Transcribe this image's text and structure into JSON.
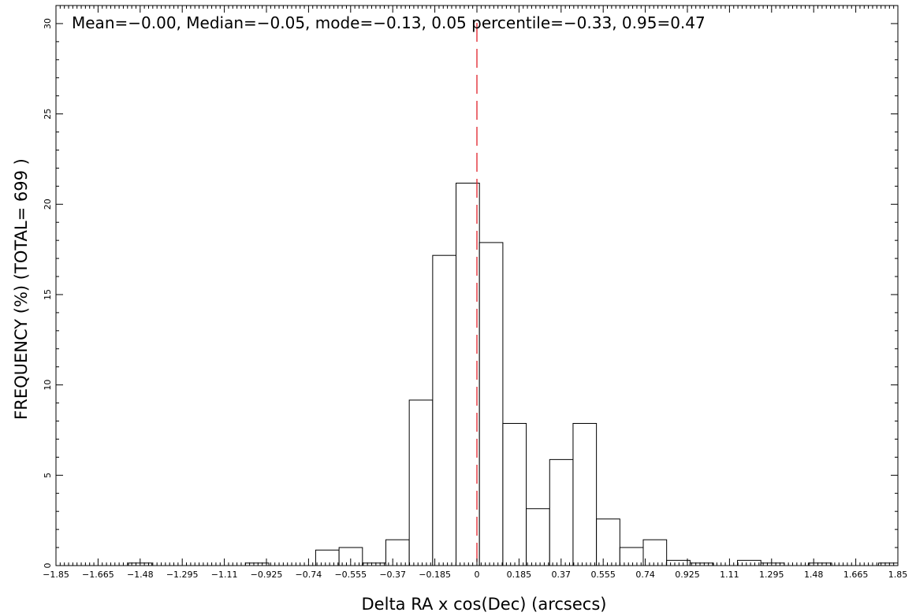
{
  "chart_data": {
    "type": "bar",
    "annotation": "Mean=−0.00, Median=−0.05, mode=−0.13, 0.05 percentile=−0.33, 0.95=0.47",
    "xlabel": "Delta RA x cos(Dec) (arcsecs)",
    "ylabel": "FREQUENCY (%) (TOTAL= 699 )",
    "xlim": [
      -1.85,
      1.85
    ],
    "ylim": [
      0,
      31
    ],
    "grid": false,
    "bin_width": 0.1028,
    "x_tick_values": [
      -1.85,
      -1.665,
      -1.48,
      -1.295,
      -1.11,
      -0.925,
      -0.74,
      -0.555,
      -0.37,
      -0.185,
      0,
      0.185,
      0.37,
      0.555,
      0.74,
      0.925,
      1.11,
      1.295,
      1.48,
      1.665,
      1.85
    ],
    "x_tick_labels": [
      "−1.85",
      "−1.665",
      "−1.48",
      "−1.295",
      "−1.11",
      "−0.925",
      "−0.74",
      "−0.555",
      "−0.37",
      "−0.185",
      "0",
      "0.185",
      "0.37",
      "0.555",
      "0.74",
      "0.925",
      "1.11",
      "1.295",
      "1.48",
      "1.665",
      "1.85"
    ],
    "y_tick_values": [
      0,
      5,
      10,
      15,
      20,
      25,
      30
    ],
    "y_tick_labels": [
      "0",
      "5",
      "10",
      "15",
      "20",
      "25",
      "30"
    ],
    "bins": [
      {
        "x0": -1.5314,
        "x1": -1.4286,
        "value": 0.14
      },
      {
        "x0": -1.0172,
        "x1": -0.9144,
        "value": 0.14
      },
      {
        "x0": -0.7087,
        "x1": -0.6059,
        "value": 0.86
      },
      {
        "x0": -0.6059,
        "x1": -0.503,
        "value": 1.0
      },
      {
        "x0": -0.503,
        "x1": -0.4002,
        "value": 0.14
      },
      {
        "x0": -0.4002,
        "x1": -0.2974,
        "value": 1.43
      },
      {
        "x0": -0.2974,
        "x1": -0.1945,
        "value": 9.16
      },
      {
        "x0": -0.1945,
        "x1": -0.0917,
        "value": 17.17
      },
      {
        "x0": -0.0917,
        "x1": 0.0111,
        "value": 21.17
      },
      {
        "x0": 0.0111,
        "x1": 0.114,
        "value": 17.88
      },
      {
        "x0": 0.114,
        "x1": 0.2168,
        "value": 7.87
      },
      {
        "x0": 0.2168,
        "x1": 0.3197,
        "value": 3.15
      },
      {
        "x0": 0.3197,
        "x1": 0.4225,
        "value": 5.87
      },
      {
        "x0": 0.4225,
        "x1": 0.5253,
        "value": 7.87
      },
      {
        "x0": 0.5253,
        "x1": 0.6282,
        "value": 2.58
      },
      {
        "x0": 0.6282,
        "x1": 0.731,
        "value": 1.0
      },
      {
        "x0": 0.731,
        "x1": 0.8338,
        "value": 1.43
      },
      {
        "x0": 0.8338,
        "x1": 0.9367,
        "value": 0.29
      },
      {
        "x0": 0.9367,
        "x1": 1.0395,
        "value": 0.14
      },
      {
        "x0": 1.1452,
        "x1": 1.248,
        "value": 0.29
      },
      {
        "x0": 1.248,
        "x1": 1.3508,
        "value": 0.14
      },
      {
        "x0": 1.4565,
        "x1": 1.5593,
        "value": 0.14
      },
      {
        "x0": 1.765,
        "x1": 1.8678,
        "value": 0.14
      }
    ],
    "reference_line": {
      "x": 0,
      "style": "dashed",
      "color": "#e0202a"
    }
  }
}
